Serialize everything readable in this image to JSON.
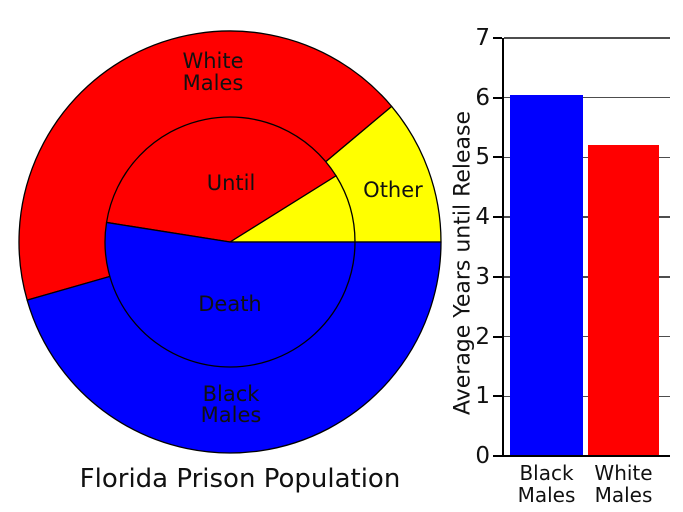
{
  "background_color": "#ffffff",
  "palette": {
    "red": "#ff0000",
    "blue": "#0000ff",
    "yellow": "#ffff00",
    "grid": "#4d4d4d",
    "text": "#111111"
  },
  "pie_title": "Florida Prison Population",
  "chart_data": [
    {
      "type": "pie",
      "variant": "nested-two-level",
      "title": "Florida Prison Population",
      "angle_convention": "degrees counter-clockwise from east (3 o'clock)",
      "outer_slices": [
        {
          "label": "Other",
          "label_lines": [
            "Other"
          ],
          "color": "#ffff00",
          "start_deg": 0,
          "end_deg": 40,
          "percent": 11.1
        },
        {
          "label": "White Males",
          "label_lines": [
            "White",
            "Males"
          ],
          "color": "#ff0000",
          "start_deg": 40,
          "end_deg": 196,
          "percent": 43.3
        },
        {
          "label": "Black Males",
          "label_lines": [
            "Black",
            "Males"
          ],
          "color": "#0000ff",
          "start_deg": 196,
          "end_deg": 360,
          "percent": 45.6
        }
      ],
      "inner_slices": [
        {
          "label": "",
          "label_lines": [],
          "color": "#ffff00",
          "start_deg": 0,
          "end_deg": 32,
          "percent": 8.9
        },
        {
          "label": "Until",
          "label_lines": [
            "Until"
          ],
          "color": "#ff0000",
          "start_deg": 32,
          "end_deg": 171,
          "percent": 38.6
        },
        {
          "label": "Death",
          "label_lines": [
            "Death"
          ],
          "color": "#0000ff",
          "start_deg": 171,
          "end_deg": 360,
          "percent": 52.5
        }
      ]
    },
    {
      "type": "bar",
      "categories": [
        "Black Males",
        "White Males"
      ],
      "values": [
        6.05,
        5.2
      ],
      "bar_colors": [
        "#0000ff",
        "#ff0000"
      ],
      "ylabel": "Average Years until Release",
      "xlabel": "",
      "ylim": [
        0,
        7
      ],
      "yticks": [
        0,
        1,
        2,
        3,
        4,
        5,
        6,
        7
      ],
      "grid": true,
      "legend": "none"
    }
  ]
}
